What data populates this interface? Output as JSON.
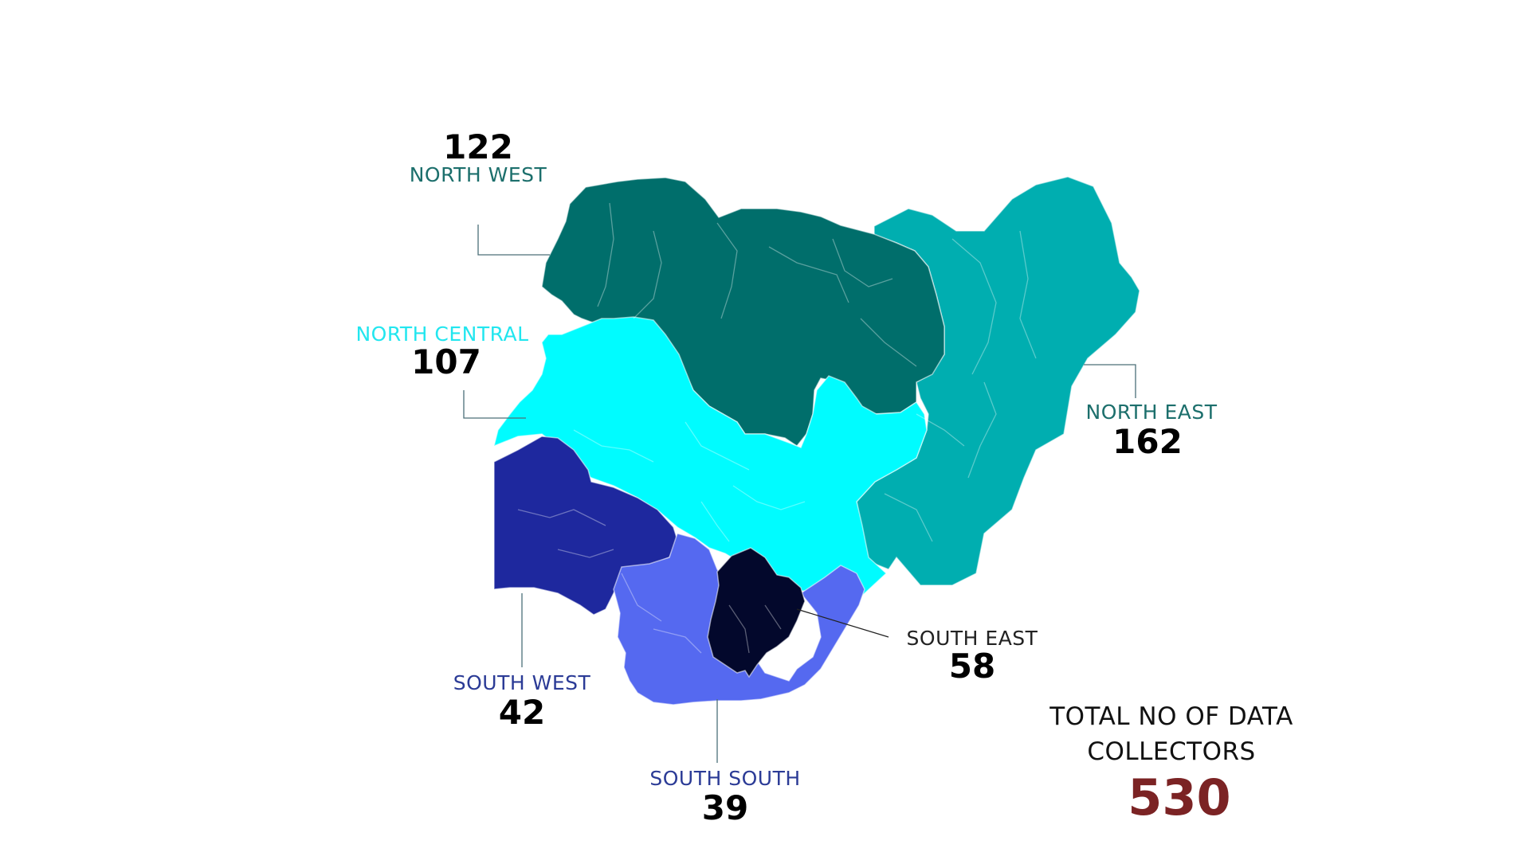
{
  "zones": {
    "north_west": {
      "label": "NORTH WEST",
      "value": "122",
      "color": "#006e6b",
      "label_color": "#1c6f6c"
    },
    "north_central": {
      "label": "NORTH CENTRAL",
      "value": "107",
      "color": "#00fcff",
      "label_color": "#22e6ef"
    },
    "north_east": {
      "label": "NORTH EAST",
      "value": "162",
      "color": "#00aeb0",
      "label_color": "#1c6f6c"
    },
    "south_west": {
      "label": "SOUTH WEST",
      "value": "42",
      "color": "#1e289e",
      "label_color": "#2b3b96"
    },
    "south_south": {
      "label": "SOUTH SOUTH",
      "value": "39",
      "color": "#5569f0",
      "label_color": "#2b3b96"
    },
    "south_east": {
      "label": "SOUTH EAST",
      "value": "58",
      "color": "#03082c",
      "label_color": "#222222"
    }
  },
  "total": {
    "label": "TOTAL NO OF DATA COLLECTORS",
    "value": "530",
    "color": "#7b2324"
  }
}
